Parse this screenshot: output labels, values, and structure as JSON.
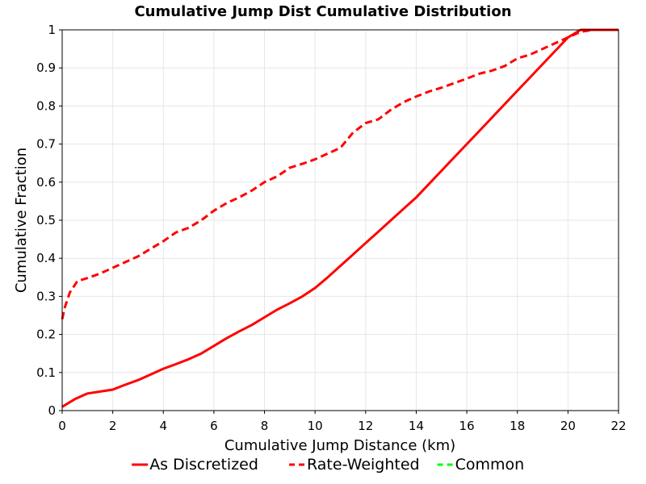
{
  "chart_data": {
    "type": "line",
    "title": "Cumulative Jump Dist Cumulative Distribution",
    "xlabel": "Cumulative Jump Distance (km)",
    "ylabel": "Cumulative Fraction",
    "xlim": [
      0,
      22
    ],
    "ylim": [
      0,
      1
    ],
    "xticks": [
      "0",
      "2",
      "4",
      "6",
      "8",
      "10",
      "12",
      "14",
      "16",
      "18",
      "20",
      "22"
    ],
    "yticks": [
      "0",
      "0.1",
      "0.2",
      "0.3",
      "0.4",
      "0.5",
      "0.6",
      "0.7",
      "0.8",
      "0.9",
      "1"
    ],
    "grid": true,
    "legend_position": "bottom",
    "series": [
      {
        "name": "As Discretized",
        "color": "#ff0000",
        "dash": "solid",
        "x": [
          0,
          0.5,
          1,
          1.5,
          2,
          2.5,
          3,
          3.5,
          4,
          4.5,
          5,
          5.5,
          6,
          6.5,
          7,
          7.5,
          8,
          8.5,
          9,
          9.5,
          10,
          10.5,
          11,
          11.5,
          12,
          12.5,
          13,
          13.5,
          14,
          14.5,
          15,
          15.5,
          16,
          16.5,
          17,
          17.5,
          18,
          18.5,
          19,
          19.5,
          20,
          20.5,
          21,
          22
        ],
        "y": [
          0.01,
          0.03,
          0.045,
          0.05,
          0.055,
          0.068,
          0.08,
          0.095,
          0.11,
          0.122,
          0.135,
          0.15,
          0.17,
          0.19,
          0.208,
          0.225,
          0.245,
          0.265,
          0.282,
          0.3,
          0.322,
          0.35,
          0.38,
          0.41,
          0.44,
          0.47,
          0.5,
          0.53,
          0.56,
          0.595,
          0.63,
          0.665,
          0.7,
          0.735,
          0.77,
          0.805,
          0.84,
          0.875,
          0.91,
          0.945,
          0.98,
          1.0,
          1.0,
          1.0
        ]
      },
      {
        "name": "Rate-Weighted",
        "color": "#ff0000",
        "dash": "dashed",
        "x": [
          0,
          0.1,
          0.3,
          0.6,
          1,
          1.5,
          2,
          2.5,
          3,
          3.5,
          4,
          4.5,
          5,
          5.5,
          6,
          6.5,
          7,
          7.5,
          8,
          8.5,
          9,
          9.5,
          10,
          10.5,
          11,
          11.5,
          12,
          12.5,
          13,
          13.5,
          14,
          14.5,
          15,
          15.5,
          16,
          16.5,
          17,
          17.5,
          18,
          18.5,
          19,
          19.5,
          20,
          20.5,
          21,
          22
        ],
        "y": [
          0.24,
          0.27,
          0.31,
          0.34,
          0.348,
          0.36,
          0.375,
          0.39,
          0.405,
          0.425,
          0.445,
          0.468,
          0.48,
          0.5,
          0.525,
          0.545,
          0.56,
          0.578,
          0.6,
          0.615,
          0.638,
          0.648,
          0.66,
          0.675,
          0.69,
          0.73,
          0.755,
          0.765,
          0.79,
          0.81,
          0.825,
          0.838,
          0.848,
          0.86,
          0.872,
          0.885,
          0.893,
          0.905,
          0.925,
          0.935,
          0.95,
          0.965,
          0.98,
          0.995,
          1.0,
          1.0
        ]
      },
      {
        "name": "Common",
        "color": "#00ff00",
        "dash": "dashed",
        "x": [],
        "y": []
      }
    ]
  }
}
